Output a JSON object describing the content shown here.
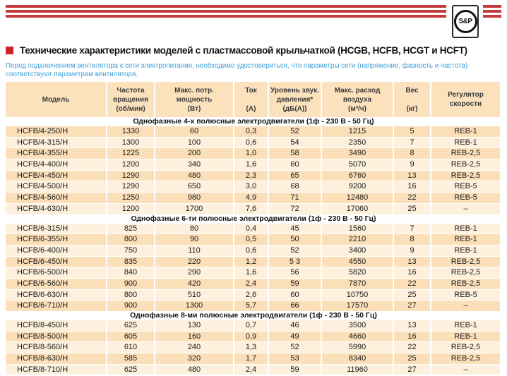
{
  "logo": {
    "text": "S&P"
  },
  "page": {
    "title": "Технические характеристики моделей с пластмассовой крыльчаткой (HCGB, HCFB, HCGT и HCFT)",
    "subtitle": "Перед подключением вентилятора к сети электропитания, необходимо удостовериться, что параметры сети (напряжение, фазность и частота) соответствуют параметрам вентилятора."
  },
  "colors": {
    "accent_red": "#c43b3e",
    "title_bullet_red": "#cc2229",
    "subtitle_blue": "#3f9fd8",
    "header_cell_bg": "#fbe2bd",
    "row_dark_bg": "#fbdfb9",
    "row_light_bg": "#fdf0dc"
  },
  "table": {
    "columns": [
      {
        "name": "model",
        "lines": [
          "Модель"
        ]
      },
      {
        "name": "rpm",
        "lines": [
          "Частота",
          "вращения",
          "(об/мин)"
        ]
      },
      {
        "name": "power",
        "lines": [
          "Макс. потр.",
          "мощность",
          "(Вт)"
        ]
      },
      {
        "name": "current",
        "lines": [
          "Ток",
          "",
          "(А)"
        ]
      },
      {
        "name": "noise",
        "lines": [
          "Уровень звук.",
          "давления*",
          "(дБ(А))"
        ]
      },
      {
        "name": "airflow",
        "lines": [
          "Макс. расход",
          "воздуха",
          "(м³/ч)"
        ]
      },
      {
        "name": "weight",
        "lines": [
          "Вес",
          "",
          "(кг)"
        ]
      },
      {
        "name": "controller",
        "lines": [
          "Регулятор",
          "скорости"
        ]
      }
    ],
    "sections": [
      {
        "title": "Однофазные 4-х полюсные электродвигатели (1ф - 230 В - 50 Гц)",
        "first_row_dark": true,
        "rows": [
          [
            "HCFB/4-250/H",
            "1330",
            "60",
            "0,3",
            "52",
            "1215",
            "5",
            "REB-1"
          ],
          [
            "HCFB/4-315/H",
            "1300",
            "100",
            "0,6",
            "54",
            "2350",
            "7",
            "REB-1"
          ],
          [
            "HCFB/4-355/H",
            "1225",
            "200",
            "1,0",
            "58",
            "3490",
            "8",
            "REB-2,5"
          ],
          [
            "HCFB/4-400/H",
            "1200",
            "340",
            "1,6",
            "60",
            "5070",
            "9",
            "REB-2,5"
          ],
          [
            "HCFB/4-450/H",
            "1290",
            "480",
            "2,3",
            "65",
            "6760",
            "13",
            "REB-2,5"
          ],
          [
            "HCFB/4-500/H",
            "1290",
            "650",
            "3,0",
            "68",
            "9200",
            "16",
            "REB-5"
          ],
          [
            "HCFB/4-560/H",
            "1250",
            "980",
            "4,9",
            "71",
            "12480",
            "22",
            "REB-5"
          ],
          [
            "HCFB/4-630/H",
            "1200",
            "1700",
            "7,6",
            "72",
            "17060",
            "25",
            "–"
          ]
        ]
      },
      {
        "title": "Однофазные 6-ти полюсные электродвигатели (1ф - 230 В - 50 Гц)",
        "first_row_dark": false,
        "rows": [
          [
            "HCFB/6-315/H",
            "825",
            "80",
            "0,4",
            "45",
            "1560",
            "7",
            "REB-1"
          ],
          [
            "HCFB/6-355/H",
            "800",
            "90",
            "0,5",
            "50",
            "2210",
            "8",
            "REB-1"
          ],
          [
            "HCFB/6-400/H",
            "750",
            "110",
            "0,6",
            "52",
            "3400",
            "9",
            "REB-1"
          ],
          [
            "HCFB/6-450/H",
            "835",
            "220",
            "1,2",
            "5 3",
            "4550",
            "13",
            "REB-2,5"
          ],
          [
            "HCFB/6-500/H",
            "840",
            "290",
            "1,6",
            "56",
            "5820",
            "16",
            "REB-2,5"
          ],
          [
            "HCFB/6-560/H",
            "900",
            "420",
            "2,4",
            "59",
            "7870",
            "22",
            "REB-2,5"
          ],
          [
            "HCFB/6-630/H",
            "800",
            "510",
            "2,6",
            "60",
            "10750",
            "25",
            "REB-5"
          ],
          [
            "HCFB/6-710/H",
            "900",
            "1300",
            "5,7",
            "66",
            "17570",
            "27",
            "–"
          ]
        ]
      },
      {
        "title": "Однофазные 8-ми полюсные электродвигатели (1ф - 230 В - 50 Гц)",
        "first_row_dark": false,
        "rows": [
          [
            "HCFB/8-450/H",
            "625",
            "130",
            "0,7",
            "46",
            "3500",
            "13",
            "REB-1"
          ],
          [
            "HCFB/8-500/H",
            "605",
            "160",
            "0,9",
            "49",
            "4660",
            "16",
            "REB-1"
          ],
          [
            "HCFB/8-560/H",
            "610",
            "240",
            "1,3",
            "52",
            "5990",
            "22",
            "REB-2,5"
          ],
          [
            "HCFB/8-630/H",
            "585",
            "320",
            "1,7",
            "53",
            "8340",
            "25",
            "REB-2,5"
          ],
          [
            "HCFB/8-710/H",
            "625",
            "480",
            "2,4",
            "59",
            "11960",
            "27",
            "–"
          ]
        ]
      }
    ]
  }
}
